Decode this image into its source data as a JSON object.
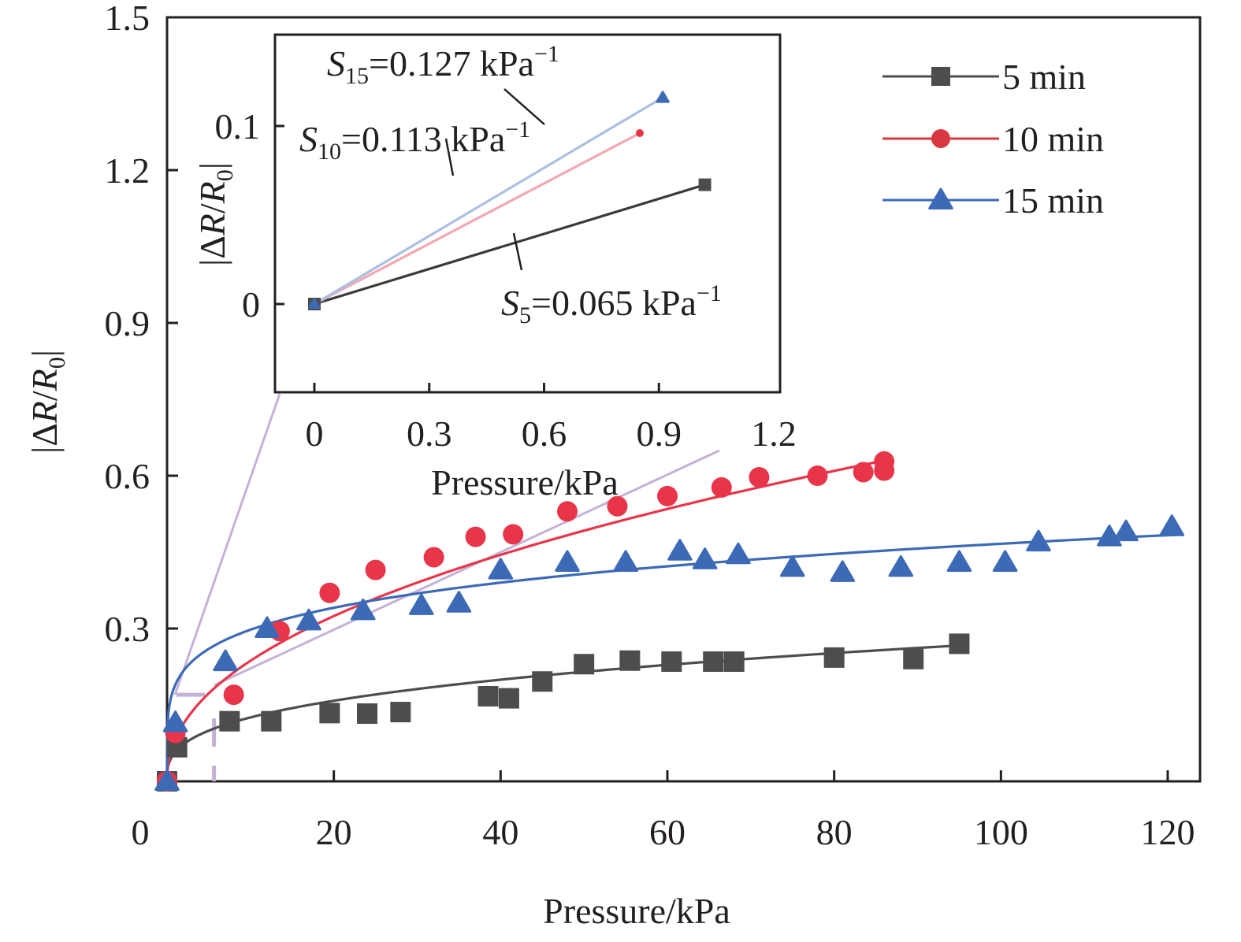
{
  "chart_data": [
    {
      "id": "main",
      "type": "scatter",
      "title": "",
      "xlabel": "Pressure/kPa",
      "ylabel": "|ΔR/R0|",
      "ylabel_parts": {
        "bar_left": "|",
        "delta": "Δ",
        "R": "R",
        "slash": "/",
        "R0": "R",
        "sub": "0",
        "bar_right": "|"
      },
      "xlim": [
        0,
        125
      ],
      "ylim": [
        0,
        1.5
      ],
      "xticks": [
        0,
        20,
        40,
        60,
        80,
        100,
        120
      ],
      "xtick_labels": [
        "0",
        "20",
        "40",
        "60",
        "80",
        "100",
        "120"
      ],
      "yticks": [
        0.3,
        0.6,
        0.9,
        1.2,
        1.5
      ],
      "ytick_labels": [
        "0.3",
        "0.6",
        "0.9",
        "1.2",
        "1.5"
      ],
      "grid": false,
      "legend_position": "top-right",
      "series": [
        {
          "name": "5 min",
          "color": "#4d4d4f",
          "marker": "square",
          "points": [
            [
              0,
              0
            ],
            [
              1.2,
              0.067
            ],
            [
              7.5,
              0.118
            ],
            [
              12.5,
              0.118
            ],
            [
              19.5,
              0.134
            ],
            [
              24,
              0.133
            ],
            [
              28,
              0.136
            ],
            [
              38.5,
              0.167
            ],
            [
              41,
              0.163
            ],
            [
              45,
              0.196
            ],
            [
              50,
              0.23
            ],
            [
              55.5,
              0.237
            ],
            [
              60.5,
              0.235
            ],
            [
              65.5,
              0.235
            ],
            [
              68,
              0.235
            ],
            [
              80,
              0.243
            ],
            [
              89.5,
              0.24
            ],
            [
              95,
              0.27
            ]
          ],
          "fit": {
            "a": 0.058,
            "b": 0.335,
            "xmax": 95
          }
        },
        {
          "name": "10 min",
          "color": "#e8354a",
          "marker": "circle",
          "points": [
            [
              0,
              0
            ],
            [
              1,
              0.095
            ],
            [
              8,
              0.17
            ],
            [
              13.5,
              0.295
            ],
            [
              19.5,
              0.37
            ],
            [
              25,
              0.415
            ],
            [
              32,
              0.44
            ],
            [
              37,
              0.48
            ],
            [
              41.5,
              0.485
            ],
            [
              48,
              0.53
            ],
            [
              54,
              0.54
            ],
            [
              60,
              0.56
            ],
            [
              66.5,
              0.577
            ],
            [
              71,
              0.597
            ],
            [
              78,
              0.6
            ],
            [
              83.5,
              0.607
            ],
            [
              86,
              0.61
            ],
            [
              86,
              0.628
            ]
          ],
          "fit": {
            "a": 0.083,
            "b": 0.455,
            "xmax": 86
          }
        },
        {
          "name": "15 min",
          "color": "#3d6ab7",
          "marker": "triangle",
          "points": [
            [
              0,
              0
            ],
            [
              1,
              0.115
            ],
            [
              7,
              0.235
            ],
            [
              12,
              0.3
            ],
            [
              17,
              0.315
            ],
            [
              23.5,
              0.335
            ],
            [
              30.5,
              0.345
            ],
            [
              35,
              0.35
            ],
            [
              40,
              0.415
            ],
            [
              48,
              0.43
            ],
            [
              55,
              0.43
            ],
            [
              61.5,
              0.452
            ],
            [
              64.5,
              0.435
            ],
            [
              68.5,
              0.445
            ],
            [
              75,
              0.42
            ],
            [
              81,
              0.41
            ],
            [
              88,
              0.42
            ],
            [
              95,
              0.43
            ],
            [
              100.5,
              0.43
            ],
            [
              104.5,
              0.47
            ],
            [
              113,
              0.48
            ],
            [
              115,
              0.49
            ],
            [
              120.5,
              0.5
            ]
          ],
          "fit": {
            "a": 0.19,
            "b": 0.195,
            "xmax": 121
          }
        }
      ],
      "zoom_guide": {
        "color": "#c5b1d8",
        "box_x": 4.5,
        "box_y": 0.17
      }
    },
    {
      "id": "inset",
      "type": "line",
      "xlabel": "Pressure/kPa",
      "ylabel": "|ΔR/R0|",
      "xlim": [
        -0.05,
        1.25
      ],
      "ylim": [
        -0.05,
        0.16
      ],
      "xticks": [
        0,
        0.3,
        0.6,
        0.9,
        1.2
      ],
      "xtick_labels": [
        "0",
        "0.3",
        "0.6",
        "0.9",
        "1.2"
      ],
      "yticks": [
        0,
        0.1
      ],
      "ytick_labels": [
        "0",
        "0.1"
      ],
      "series": [
        {
          "name": "5 min",
          "color": "#3a3a3c",
          "marker": "square",
          "points": [
            [
              0,
              0
            ],
            [
              1.02,
              0.067
            ]
          ],
          "sensitivity_label": {
            "S": "S",
            "sub": "5",
            "value": "=0.065 kPa",
            "sup": "−1"
          }
        },
        {
          "name": "10 min",
          "color": "#f2a8b3",
          "marker": "circle",
          "points": [
            [
              0,
              0
            ],
            [
              0.85,
              0.096
            ]
          ],
          "sensitivity_label": {
            "S": "S",
            "sub": "10",
            "value": "=0.113 kPa",
            "sup": "−1"
          }
        },
        {
          "name": "15 min",
          "color": "#a9c0e3",
          "marker": "triangle",
          "points": [
            [
              0,
              0
            ],
            [
              0.91,
              0.116
            ]
          ],
          "sensitivity_label": {
            "S": "S",
            "sub": "15",
            "value": "=0.127 kPa",
            "sup": "−1"
          }
        }
      ]
    }
  ],
  "legend": {
    "items": [
      {
        "label": "5 min",
        "color": "#4d4d4f",
        "marker": "square"
      },
      {
        "label": "10 min",
        "color": "#d9373f",
        "marker": "circle"
      },
      {
        "label": "15 min",
        "color": "#3d6ab7",
        "marker": "triangle"
      }
    ]
  }
}
